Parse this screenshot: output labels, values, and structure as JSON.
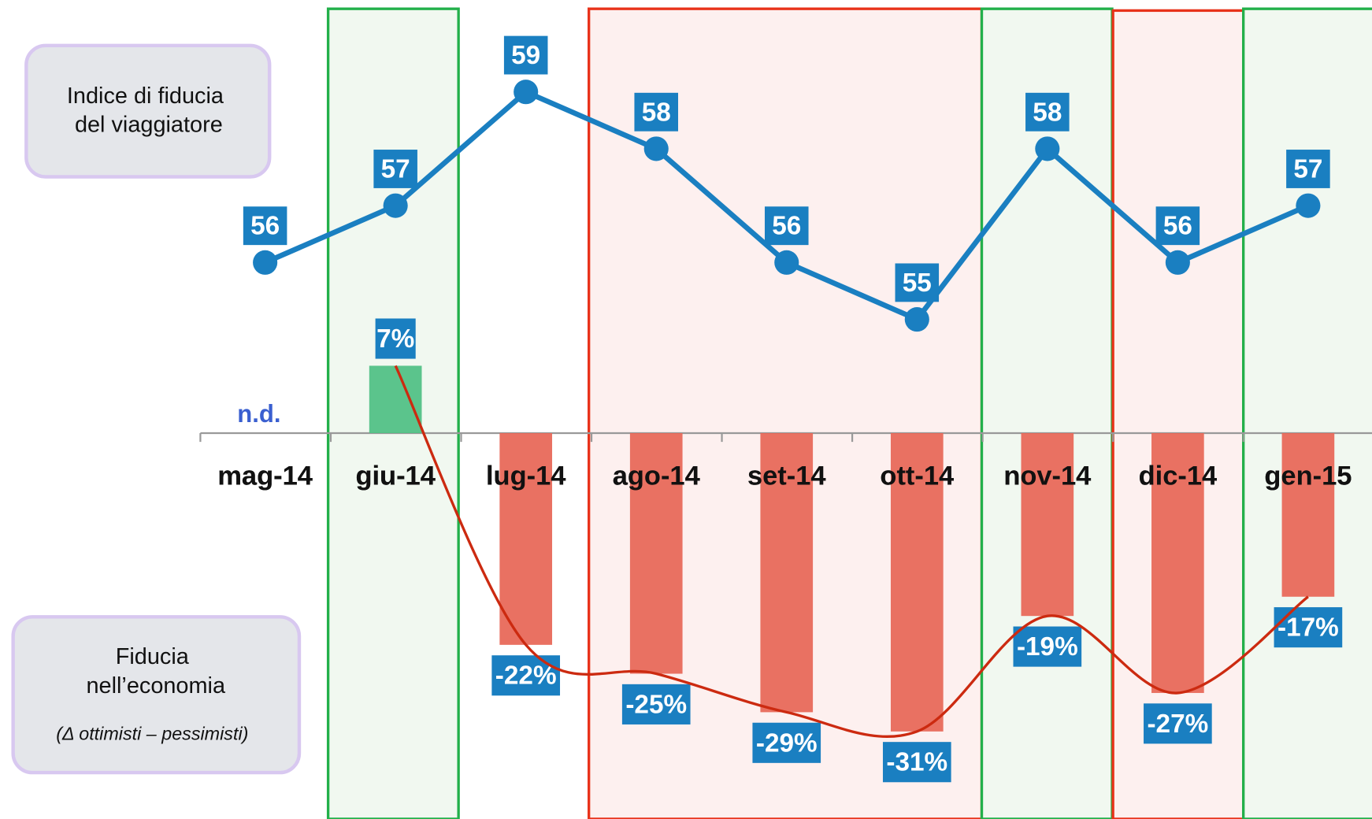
{
  "chart_data": {
    "type": "line_bar",
    "categories": [
      "mag-14",
      "giu-14",
      "lug-14",
      "ago-14",
      "set-14",
      "ott-14",
      "nov-14",
      "dic-14",
      "gen-15"
    ],
    "labels": {
      "line_label": [
        "Indice di fiducia",
        "del viaggiatore"
      ],
      "bar_label": [
        "Fiducia",
        "nell’economia"
      ],
      "bar_note": "(Δ ottimisti – pessimisti)"
    },
    "series": [
      {
        "type": "line",
        "color": "#1a7fc1",
        "values": [
          56,
          57,
          59,
          58,
          56,
          55,
          58,
          56,
          57
        ]
      },
      {
        "type": "bar",
        "axis": "y2",
        "color": "#e8695a",
        "positive_color": "#52c186",
        "trend_color": "#cc2a10",
        "values": [
          null,
          7,
          -22,
          -25,
          -29,
          -31,
          -19,
          -27,
          -17
        ],
        "value_labels": [
          "n.d.",
          "7%",
          "-22%",
          "-25%",
          "-29%",
          "-31%",
          "-19%",
          "-27%",
          "-17%"
        ]
      }
    ],
    "ylim": [
      54,
      60
    ],
    "y2lim": [
      -40,
      10
    ]
  }
}
